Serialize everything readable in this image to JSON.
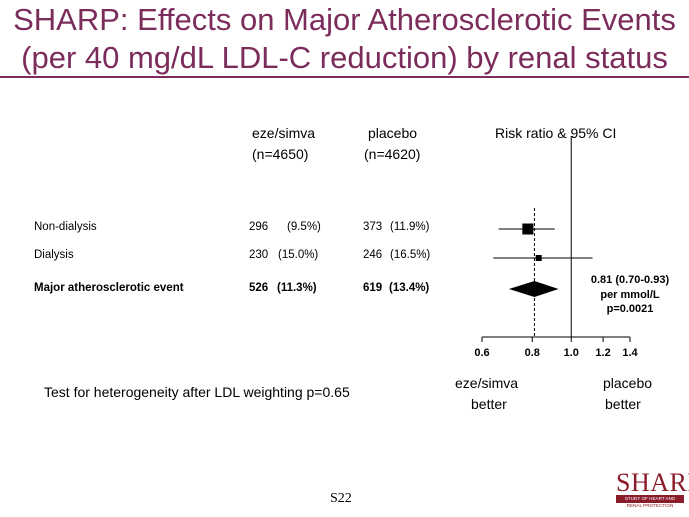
{
  "title": {
    "line1": "SHARP: Effects on Major Atherosclerotic Events",
    "line2": "(per 40 mg/dL LDL-C reduction) by renal status"
  },
  "columns": {
    "eze_header": "eze/simva",
    "eze_n": "(n=4650)",
    "placebo_header": "placebo",
    "placebo_n": "(n=4620)",
    "ci_header": "Risk ratio & 95% CI"
  },
  "rows": [
    {
      "label": "Non-dialysis",
      "eze_count": "296",
      "eze_pct": "(9.5%)",
      "placebo_count": "373",
      "placebo_pct": "(11.9%)"
    },
    {
      "label": "Dialysis",
      "eze_count": "230",
      "eze_pct": "(15.0%)",
      "placebo_count": "246",
      "placebo_pct": "(16.5%)"
    },
    {
      "label": "Major atherosclerotic event",
      "eze_count": "526",
      "eze_pct": "(11.3%)",
      "placebo_count": "619",
      "placebo_pct": "(13.4%)"
    }
  ],
  "summary": {
    "line1": "0.81 (0.70-0.93)",
    "line2": "per mmol/L",
    "line3": "p=0.0021"
  },
  "heterogeneity": "Test for heterogeneity after LDL weighting p=0.65",
  "favours": {
    "left_line1": "eze/simva",
    "left_line2": "better",
    "right_line1": "placebo",
    "right_line2": "better"
  },
  "slide_number": "S22",
  "logo": {
    "name": "SHARP",
    "line1": "STUDY OF HEART AND",
    "line2": "RENAL PROTECTION",
    "color": "#8b1c2a"
  },
  "colors": {
    "title": "#7b2c5b"
  },
  "chart_data": {
    "type": "forest",
    "title": "",
    "xlabel": "",
    "x_scale": "log",
    "xlim": [
      0.6,
      1.4
    ],
    "ticks": [
      0.6,
      0.8,
      1.0,
      1.2,
      1.4
    ],
    "tick_labels": [
      "0.6",
      "0.8",
      "1.0",
      "1.2",
      "1.4"
    ],
    "reference_line": 1.0,
    "overall_dashed_line": 0.81,
    "estimates": [
      {
        "label": "Non-dialysis",
        "rr": 0.78,
        "ci": [
          0.66,
          0.91
        ],
        "shape": "square",
        "weight": "large"
      },
      {
        "label": "Dialysis",
        "rr": 0.83,
        "ci": [
          0.64,
          1.13
        ],
        "shape": "square",
        "weight": "small"
      },
      {
        "label": "Major atherosclerotic event",
        "rr": 0.81,
        "ci": [
          0.7,
          0.93
        ],
        "shape": "diamond"
      }
    ]
  }
}
